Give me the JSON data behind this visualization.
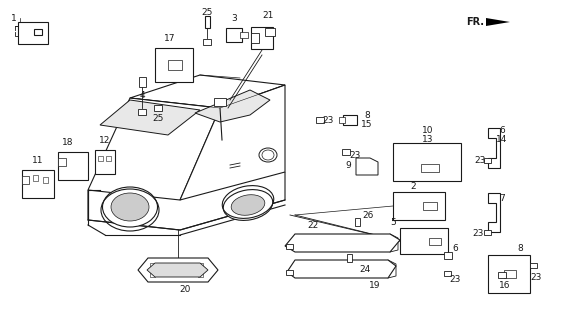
{
  "bg_color": "#ffffff",
  "line_color": "#1a1a1a",
  "fig_width": 5.68,
  "fig_height": 3.2,
  "dpi": 100
}
